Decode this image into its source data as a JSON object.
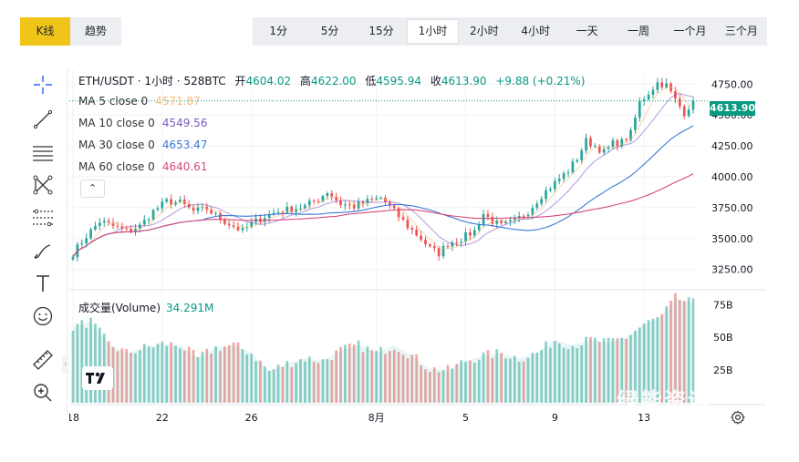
{
  "view_toggle": {
    "kline": "K线",
    "trend": "趋势"
  },
  "intervals": [
    "1分",
    "5分",
    "15分",
    "1小时",
    "2小时",
    "4小时",
    "一天",
    "一周",
    "一个月",
    "三个月"
  ],
  "active_interval": "1小时",
  "legend": {
    "symbol": "ETH/USDT · 1小时 · 528BTC",
    "open_label": "开",
    "open": "4604.02",
    "high_label": "高",
    "high": "4622.00",
    "low_label": "低",
    "low": "4595.94",
    "close_label": "收",
    "close": "4613.90",
    "change": "+9.88 (+0.21%)"
  },
  "ma": [
    {
      "label": "MA 5 close 0",
      "value": "4571.87",
      "color": "#f5b97a"
    },
    {
      "label": "MA 10 close 0",
      "value": "4549.56",
      "color": "#7e57c2"
    },
    {
      "label": "MA 30 close 0",
      "value": "4653.47",
      "color": "#3c78d8"
    },
    {
      "label": "MA 60 close 0",
      "value": "4640.61",
      "color": "#d6497a"
    }
  ],
  "fold_symbol": "⌃",
  "volume": {
    "label": "成交量(Volume)",
    "value": "34.291M"
  },
  "current_price": "4613.90",
  "watermark": "绿能资讯",
  "colors": {
    "up": "#26a69a",
    "down": "#ef5350",
    "accent": "#f0c419",
    "vol_up": "#8fd1c8",
    "vol_down": "#f4a7a5"
  },
  "chart_data": {
    "type": "candlestick",
    "price_axis": {
      "ticks": [
        3250,
        3500,
        3750,
        4000,
        4250,
        4500,
        4750
      ],
      "tick_labels": [
        "3250.00",
        "3500.00",
        "3750.00",
        "4000.00",
        "4250.00",
        "4500.00",
        "4750.00"
      ],
      "ylim": [
        3100,
        4870
      ]
    },
    "volume_axis": {
      "ticks": [
        25,
        50,
        75
      ],
      "tick_labels": [
        "25B",
        "50B",
        "75B"
      ],
      "ylim": [
        0,
        85
      ]
    },
    "x_tick_labels": [
      "18",
      "22",
      "26",
      "8月",
      "5",
      "9",
      "13"
    ],
    "close_path": [
      [
        0,
        3380
      ],
      [
        3,
        3520
      ],
      [
        6,
        3640
      ],
      [
        9,
        3600
      ],
      [
        12,
        3560
      ],
      [
        15,
        3600
      ],
      [
        18,
        3720
      ],
      [
        21,
        3800
      ],
      [
        24,
        3790
      ],
      [
        27,
        3720
      ],
      [
        30,
        3740
      ],
      [
        33,
        3660
      ],
      [
        36,
        3600
      ],
      [
        38,
        3560
      ],
      [
        40,
        3620
      ],
      [
        43,
        3680
      ],
      [
        46,
        3720
      ],
      [
        49,
        3740
      ],
      [
        52,
        3760
      ],
      [
        55,
        3820
      ],
      [
        57,
        3880
      ],
      [
        60,
        3780
      ],
      [
        63,
        3760
      ],
      [
        66,
        3800
      ],
      [
        69,
        3830
      ],
      [
        72,
        3720
      ],
      [
        75,
        3600
      ],
      [
        78,
        3500
      ],
      [
        80,
        3420
      ],
      [
        82,
        3380
      ],
      [
        84,
        3460
      ],
      [
        87,
        3500
      ],
      [
        90,
        3560
      ],
      [
        92,
        3700
      ],
      [
        94,
        3640
      ],
      [
        96,
        3600
      ],
      [
        99,
        3640
      ],
      [
        102,
        3720
      ],
      [
        105,
        3850
      ],
      [
        108,
        3950
      ],
      [
        111,
        4050
      ],
      [
        113,
        4150
      ],
      [
        115,
        4290
      ],
      [
        117,
        4250
      ],
      [
        119,
        4200
      ],
      [
        121,
        4270
      ],
      [
        123,
        4280
      ],
      [
        125,
        4350
      ],
      [
        127,
        4600
      ],
      [
        129,
        4680
      ],
      [
        131,
        4760
      ],
      [
        133,
        4740
      ],
      [
        135,
        4620
      ],
      [
        137,
        4520
      ],
      [
        139,
        4613
      ]
    ],
    "volume_level_path": [
      [
        0,
        58
      ],
      [
        4,
        62
      ],
      [
        8,
        45
      ],
      [
        12,
        38
      ],
      [
        16,
        42
      ],
      [
        20,
        45
      ],
      [
        24,
        44
      ],
      [
        28,
        34
      ],
      [
        32,
        42
      ],
      [
        36,
        44
      ],
      [
        40,
        38
      ],
      [
        44,
        24
      ],
      [
        48,
        30
      ],
      [
        52,
        34
      ],
      [
        56,
        32
      ],
      [
        60,
        40
      ],
      [
        64,
        44
      ],
      [
        68,
        38
      ],
      [
        72,
        44
      ],
      [
        76,
        36
      ],
      [
        80,
        26
      ],
      [
        84,
        25
      ],
      [
        88,
        32
      ],
      [
        92,
        36
      ],
      [
        96,
        38
      ],
      [
        100,
        34
      ],
      [
        104,
        38
      ],
      [
        108,
        48
      ],
      [
        112,
        44
      ],
      [
        116,
        48
      ],
      [
        120,
        46
      ],
      [
        124,
        50
      ],
      [
        128,
        60
      ],
      [
        132,
        66
      ],
      [
        135,
        80
      ],
      [
        139,
        76
      ]
    ],
    "candle_count": 140
  }
}
